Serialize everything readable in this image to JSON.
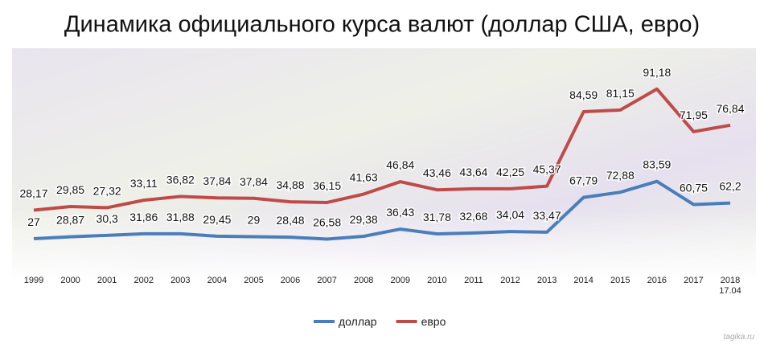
{
  "chart_data": {
    "type": "line",
    "stacked": true,
    "title": "Динамика официального курса валют (доллар США, евро)",
    "watermark": "tagika.ru",
    "categories": [
      "1999",
      "2000",
      "2001",
      "2002",
      "2003",
      "2004",
      "2005",
      "2006",
      "2007",
      "2008",
      "2009",
      "2010",
      "2011",
      "2012",
      "2013",
      "2014",
      "2015",
      "2016",
      "2017",
      "2018\n17.04"
    ],
    "series": [
      {
        "name": "доллар",
        "color": "#4a7ebb",
        "values": [
          27,
          28.87,
          30.3,
          31.86,
          31.88,
          29.45,
          29,
          28.48,
          26.58,
          29.38,
          36.43,
          31.78,
          32.68,
          34.04,
          33.47,
          67.79,
          72.88,
          83.59,
          60.75,
          62.2
        ],
        "value_labels": [
          "27",
          "28,87",
          "30,3",
          "31,86",
          "31,88",
          "29,45",
          "29",
          "28,48",
          "26,58",
          "29,38",
          "36,43",
          "31,78",
          "32,68",
          "34,04",
          "33,47",
          "67,79",
          "72,88",
          "83,59",
          "60,75",
          "62,2"
        ]
      },
      {
        "name": "евро",
        "color": "#be4b48",
        "values": [
          28.17,
          29.85,
          27.32,
          33.11,
          36.82,
          37.84,
          37.84,
          34.88,
          36.15,
          41.63,
          46.84,
          43.46,
          43.64,
          42.25,
          45.37,
          84.59,
          81.15,
          91.18,
          71.95,
          76.84
        ],
        "value_labels": [
          "28,17",
          "29,85",
          "27,32",
          "33,11",
          "36,82",
          "37,84",
          "37,84",
          "34,88",
          "36,15",
          "41,63",
          "46,84",
          "43,46",
          "43,64",
          "42,25",
          "45,37",
          "84,59",
          "81,15",
          "91,18",
          "71,95",
          "76,84"
        ]
      }
    ],
    "legend": "bottom"
  }
}
